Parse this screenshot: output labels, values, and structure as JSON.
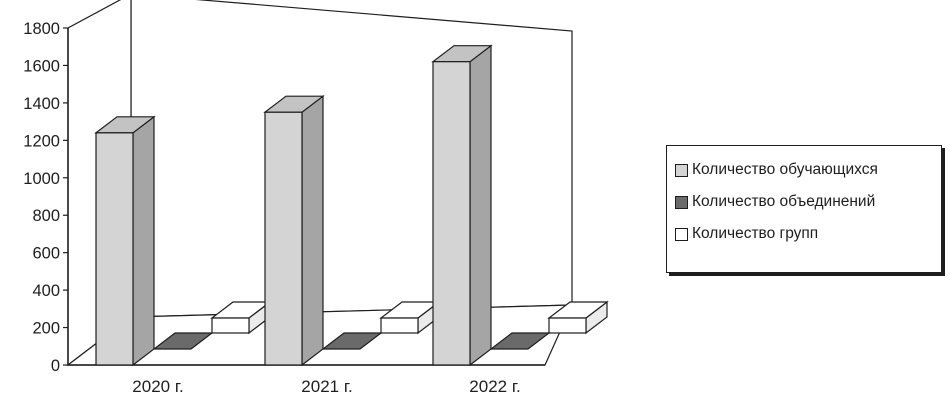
{
  "chart_data": {
    "type": "bar",
    "style": "3d-column",
    "categories": [
      "2020 г.",
      "2021 г.",
      "2022 г."
    ],
    "series": [
      {
        "name": "Количество обучающихся",
        "values": [
          1240,
          1350,
          1620
        ],
        "color": "#d4d4d4"
      },
      {
        "name": "Количество объединений",
        "values": [
          0,
          0,
          0
        ],
        "color": "#6a6a6a"
      },
      {
        "name": "Количество групп",
        "values": [
          80,
          80,
          80
        ],
        "color": "#ffffff"
      }
    ],
    "yticks": [
      "0",
      "200",
      "400",
      "600",
      "800",
      "1000",
      "1200",
      "1400",
      "1600",
      "1800"
    ],
    "ylim": [
      0,
      1800
    ],
    "grid": false,
    "legend_position": "right"
  }
}
